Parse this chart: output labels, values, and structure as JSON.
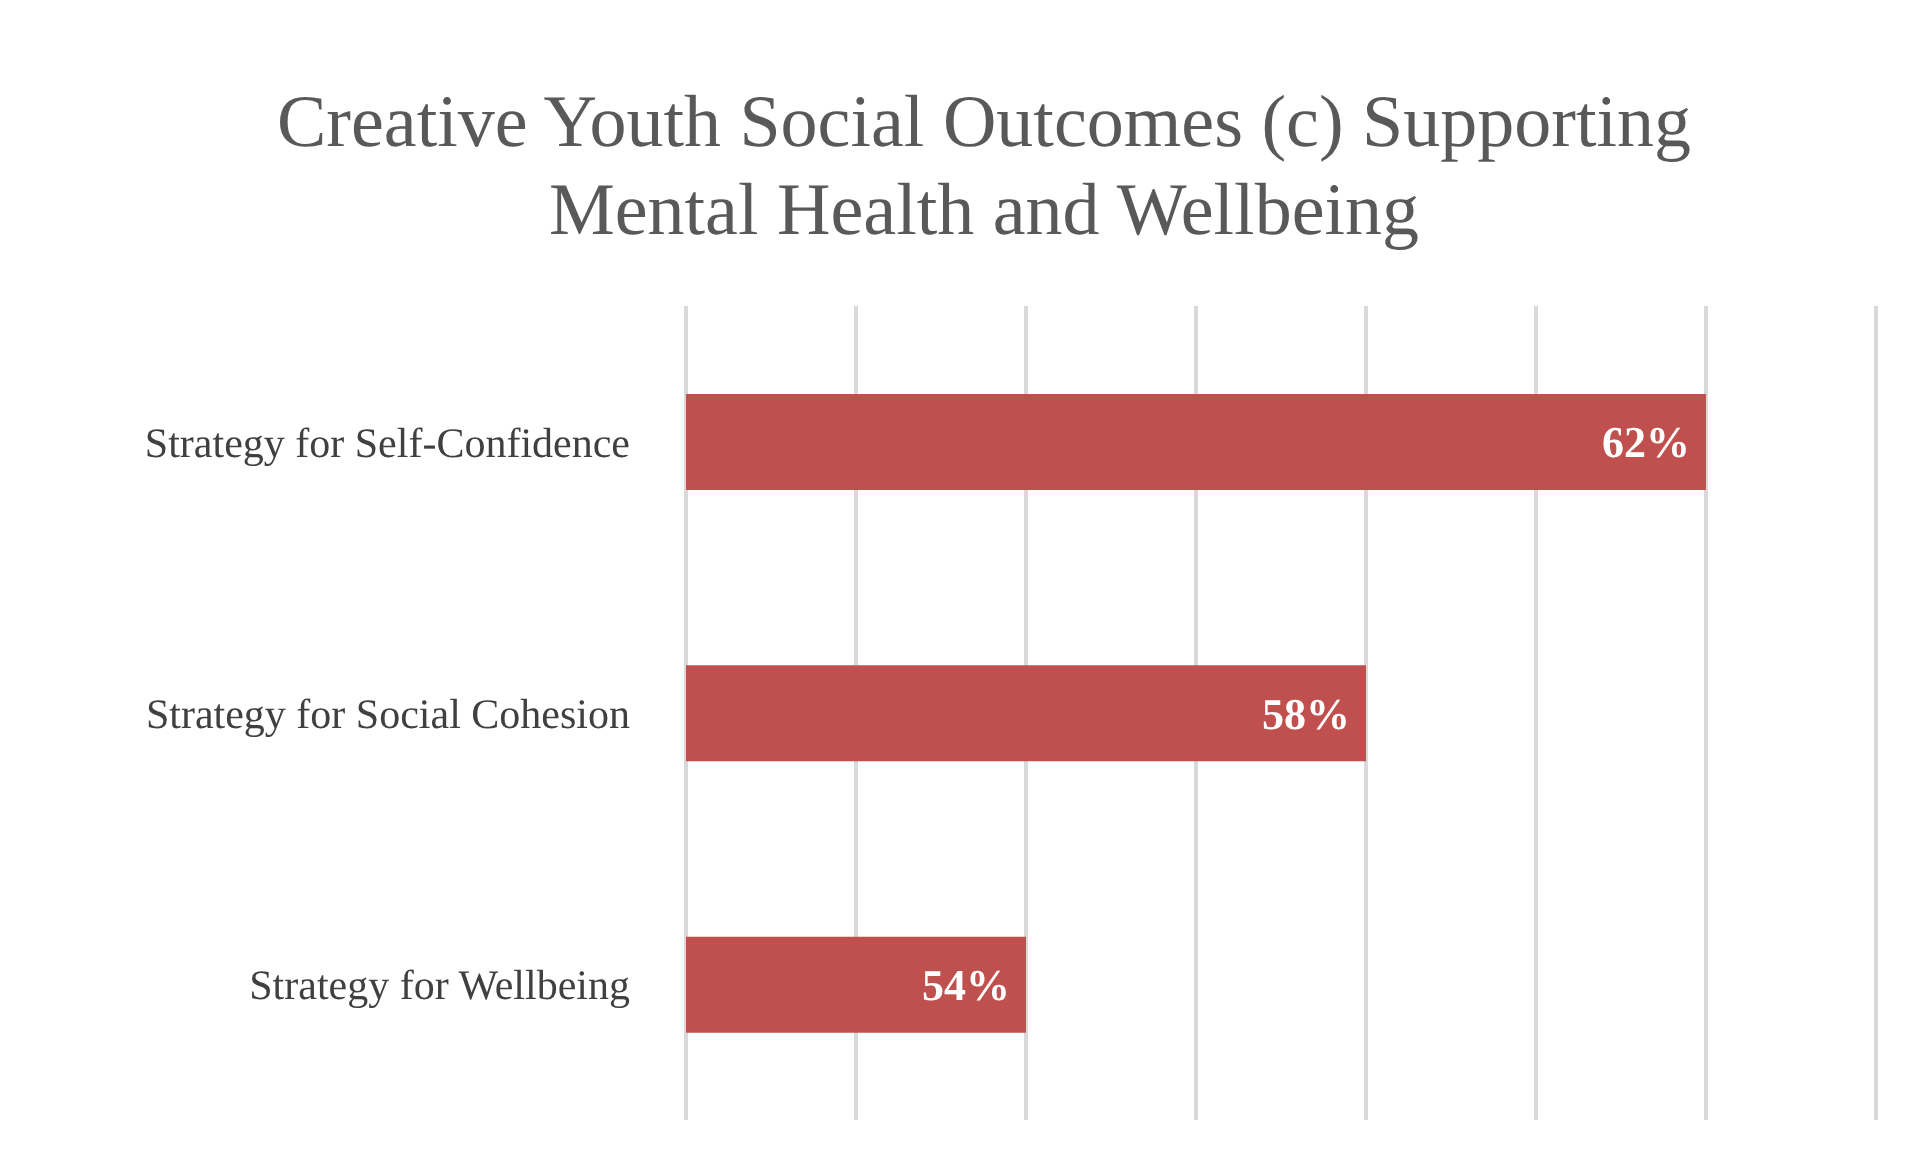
{
  "chart_data": {
    "type": "bar",
    "orientation": "horizontal",
    "title": "Creative Youth Social Outcomes (c) Supporting Mental Health and Wellbeing",
    "categories": [
      "Strategy for Self-Confidence",
      "Strategy for Social Cohesion",
      "Strategy for Wellbeing"
    ],
    "values": [
      62,
      58,
      54
    ],
    "color": "#c0504d",
    "value_labels": [
      "62%",
      "58%",
      "54%"
    ],
    "xlim": [
      50,
      64
    ],
    "xticks": [
      {
        "value": 50,
        "label": null
      },
      {
        "value": 52,
        "label": null
      },
      {
        "value": 54,
        "label": null
      },
      {
        "value": 56,
        "label": null
      },
      {
        "value": 58,
        "label": null
      },
      {
        "value": 60,
        "label": null
      },
      {
        "value": 62,
        "label": null
      },
      {
        "value": 64,
        "label": null
      }
    ],
    "tick_labels": "y",
    "grid": "x"
  }
}
